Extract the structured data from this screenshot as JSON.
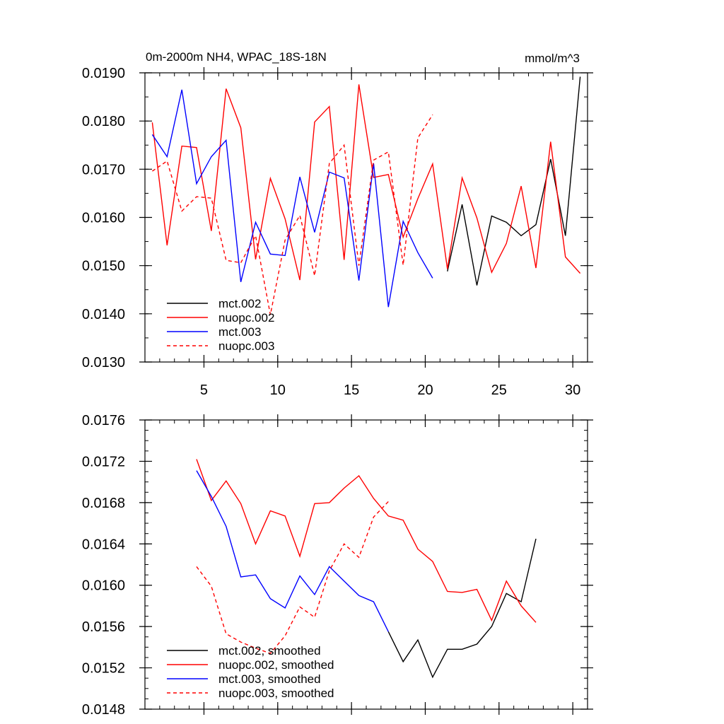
{
  "chart_data": [
    {
      "type": "line",
      "title": "0m-2000m NH4, WPAC_18S-18N",
      "units": "mmol/m^3",
      "xlim": [
        1,
        31
      ],
      "ylim": [
        0.013,
        0.019
      ],
      "y_tick_values": [
        0.013,
        0.014,
        0.015,
        0.016,
        0.017,
        0.018,
        0.019
      ],
      "y_tick_labels": [
        "0.0130",
        "0.0140",
        "0.0150",
        "0.0160",
        "0.0170",
        "0.0180",
        "0.0190"
      ],
      "x_tick_values": [
        5,
        10,
        15,
        20,
        25,
        30
      ],
      "x_tick_labels": [
        "5",
        "10",
        "15",
        "20",
        "25",
        "30"
      ],
      "legend": [
        "mct.002",
        "nuopc.002",
        "mct.003",
        "nuopc.003"
      ],
      "series": [
        {
          "name": "mct.002",
          "color": "#000000",
          "dash": "solid",
          "x": [
            21.5,
            22.5,
            23.5,
            24.5,
            25.5,
            26.5,
            27.5,
            28.5,
            29.5,
            30.5
          ],
          "values": [
            0.01488,
            0.01627,
            0.01459,
            0.01603,
            0.0159,
            0.01562,
            0.01585,
            0.01721,
            0.01562,
            0.01892
          ]
        },
        {
          "name": "nuopc.002",
          "color": "#ff0000",
          "dash": "solid",
          "x": [
            1.5,
            2.5,
            3.5,
            4.5,
            5.5,
            6.5,
            7.5,
            8.5,
            9.5,
            10.5,
            11.5,
            12.5,
            13.5,
            14.5,
            15.5,
            16.5,
            17.5,
            18.5,
            19.5,
            20.5,
            21.5,
            22.5,
            23.5,
            24.5,
            25.5,
            26.5,
            27.5,
            28.5,
            29.5,
            30.5
          ],
          "values": [
            0.01797,
            0.01542,
            0.01748,
            0.01745,
            0.01572,
            0.01867,
            0.01786,
            0.01513,
            0.01681,
            0.01597,
            0.0147,
            0.01798,
            0.0183,
            0.01512,
            0.01876,
            0.01683,
            0.01689,
            0.01559,
            0.01639,
            0.01711,
            0.01493,
            0.01682,
            0.01599,
            0.01486,
            0.01546,
            0.01665,
            0.01495,
            0.01757,
            0.01518,
            0.01484
          ]
        },
        {
          "name": "mct.003",
          "color": "#0000ff",
          "dash": "solid",
          "x": [
            1.5,
            2.5,
            3.5,
            4.5,
            5.5,
            6.5,
            7.5,
            8.5,
            9.5,
            10.5,
            11.5,
            12.5,
            13.5,
            14.5,
            15.5,
            16.5,
            17.5,
            18.5,
            19.5,
            20.5
          ],
          "values": [
            0.01772,
            0.01726,
            0.01865,
            0.0167,
            0.01726,
            0.0176,
            0.01466,
            0.0159,
            0.01524,
            0.01521,
            0.01684,
            0.01569,
            0.01694,
            0.01682,
            0.01469,
            0.01712,
            0.01414,
            0.01592,
            0.01527,
            0.01474
          ]
        },
        {
          "name": "nuopc.003",
          "color": "#ff0000",
          "dash": "dashed",
          "x": [
            1.5,
            2.5,
            3.5,
            4.5,
            5.5,
            6.5,
            7.5,
            8.5,
            9.5,
            10.5,
            11.5,
            12.5,
            13.5,
            14.5,
            15.5,
            16.5,
            17.5,
            18.5,
            19.5,
            20.5
          ],
          "values": [
            0.01696,
            0.01717,
            0.01613,
            0.01643,
            0.0164,
            0.01511,
            0.01506,
            0.01562,
            0.01398,
            0.01553,
            0.01604,
            0.01479,
            0.01712,
            0.0175,
            0.015,
            0.01719,
            0.01736,
            0.01501,
            0.01765,
            0.01813
          ]
        }
      ]
    },
    {
      "type": "line",
      "xlim": [
        1,
        31
      ],
      "ylim": [
        0.0148,
        0.0176
      ],
      "y_tick_values": [
        0.0148,
        0.0152,
        0.0156,
        0.016,
        0.0164,
        0.0168,
        0.0172,
        0.0176
      ],
      "y_tick_labels": [
        "0.0148",
        "0.0152",
        "0.0156",
        "0.0160",
        "0.0164",
        "0.0168",
        "0.0172",
        "0.0176"
      ],
      "x_tick_values": [
        5,
        10,
        15,
        20,
        25,
        30
      ],
      "legend": [
        "mct.002, smoothed",
        "nuopc.002, smoothed",
        "mct.003, smoothed",
        "nuopc.003, smoothed"
      ],
      "series": [
        {
          "name": "mct.002, smoothed",
          "color": "#000000",
          "dash": "solid",
          "x": [
            17.5,
            18.5,
            19.5,
            20.5,
            21.5,
            22.5,
            23.5,
            24.5,
            25.5,
            26.5,
            27.5
          ],
          "values": [
            0.01555,
            0.01526,
            0.01547,
            0.01511,
            0.01538,
            0.01538,
            0.01543,
            0.0156,
            0.01592,
            0.01584,
            0.01645
          ]
        },
        {
          "name": "nuopc.002, smoothed",
          "color": "#ff0000",
          "dash": "solid",
          "x": [
            4.5,
            5.5,
            6.5,
            7.5,
            8.5,
            9.5,
            10.5,
            11.5,
            12.5,
            13.5,
            14.5,
            15.5,
            16.5,
            17.5,
            18.5,
            19.5,
            20.5,
            21.5,
            22.5,
            23.5,
            24.5,
            25.5,
            26.5,
            27.5
          ],
          "values": [
            0.01722,
            0.01682,
            0.01701,
            0.01679,
            0.0164,
            0.01672,
            0.01667,
            0.01628,
            0.01679,
            0.0168,
            0.01694,
            0.01706,
            0.01684,
            0.01667,
            0.01663,
            0.01635,
            0.01623,
            0.01594,
            0.01593,
            0.01596,
            0.01566,
            0.01604,
            0.0158,
            0.01564
          ]
        },
        {
          "name": "mct.003, smoothed",
          "color": "#0000ff",
          "dash": "solid",
          "x": [
            4.5,
            5.5,
            6.5,
            7.5,
            8.5,
            9.5,
            10.5,
            11.5,
            12.5,
            13.5,
            14.5,
            15.5,
            16.5,
            17.5
          ],
          "values": [
            0.01711,
            0.01686,
            0.01657,
            0.01608,
            0.0161,
            0.01587,
            0.01578,
            0.01609,
            0.01591,
            0.01618,
            0.01604,
            0.0159,
            0.01584,
            0.01555
          ]
        },
        {
          "name": "nuopc.003, smoothed",
          "color": "#ff0000",
          "dash": "dashed",
          "x": [
            4.5,
            5.5,
            6.5,
            7.5,
            8.5,
            9.5,
            10.5,
            11.5,
            12.5,
            13.5,
            14.5,
            15.5,
            16.5,
            17.5
          ],
          "values": [
            0.01618,
            0.01599,
            0.01553,
            0.01545,
            0.01539,
            0.01534,
            0.01551,
            0.01579,
            0.01569,
            0.01614,
            0.0164,
            0.01627,
            0.01666,
            0.01681
          ]
        }
      ]
    }
  ]
}
